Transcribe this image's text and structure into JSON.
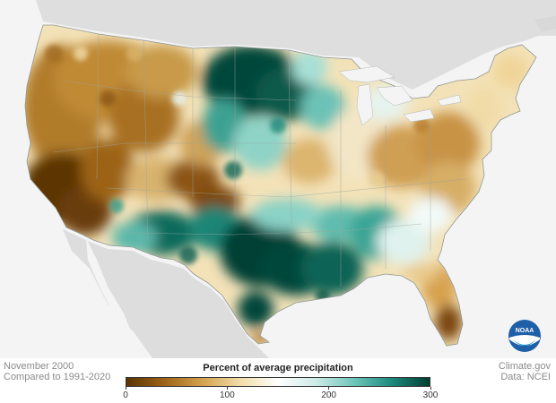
{
  "map": {
    "month_label": "November 2000",
    "baseline_label": "Compared to 1991-2020",
    "source_label": "Climate.gov",
    "data_label": "Data: NCEI",
    "logo_text": "NOAA"
  },
  "legend": {
    "title": "Percent of average precipitation",
    "ticks": [
      "0",
      "100",
      "200",
      "300"
    ],
    "tick_values": [
      0,
      100,
      200,
      300
    ],
    "range": [
      0,
      300
    ],
    "colors": [
      "#5a3304",
      "#9c6418",
      "#d4a24e",
      "#f1dca8",
      "#ffffff",
      "#cdebe6",
      "#6dc6bb",
      "#1e8a7d",
      "#013d32"
    ]
  },
  "colors": {
    "dry": "#7a4a0c",
    "mid_dry": "#c9953f",
    "tan": "#e8c98a",
    "neutral": "#f7f1e4",
    "mid_wet": "#7fcfc3",
    "wet": "#0e6a5c",
    "very_wet": "#033f34",
    "land_outside": "#dcdcdc",
    "water": "#f4f4f4"
  }
}
